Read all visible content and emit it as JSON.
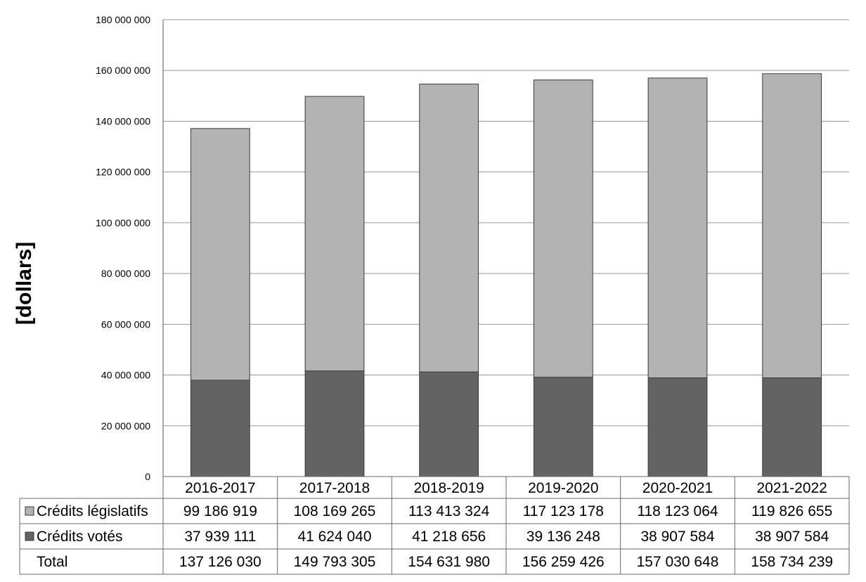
{
  "chart_data": {
    "type": "bar",
    "stacked": true,
    "ylabel": "[dollars]",
    "ylim": [
      0,
      180000000
    ],
    "yticks": [
      0,
      20000000,
      40000000,
      60000000,
      80000000,
      100000000,
      120000000,
      140000000,
      160000000,
      180000000
    ],
    "ytick_labels": [
      "0",
      "20 000 000",
      "40 000 000",
      "60 000 000",
      "80 000 000",
      "100 000 000",
      "120 000 000",
      "140 000 000",
      "160 000 000",
      "180 000 000"
    ],
    "grid": true,
    "legend": "data-table",
    "categories": [
      "2016-2017",
      "2017-2018",
      "2018-2019",
      "2019-2020",
      "2020-2021",
      "2021-2022"
    ],
    "series": [
      {
        "name": "Crédits législatifs",
        "color": "#b3b3b3",
        "values": [
          99186919,
          108169265,
          113413324,
          117123178,
          118123064,
          119826655
        ],
        "labels": [
          "99 186 919",
          "108 169 265",
          "113 413 324",
          "117 123 178",
          "118 123 064",
          "119 826 655"
        ]
      },
      {
        "name": "Crédits votés",
        "color": "#636363",
        "values": [
          37939111,
          41624040,
          41218656,
          39136248,
          38907584,
          38907584
        ],
        "labels": [
          "37 939 111",
          "41 624 040",
          "41 218 656",
          "39 136 248",
          "38 907 584",
          "38 907 584"
        ]
      }
    ],
    "total": {
      "name": "Total",
      "values": [
        137126030,
        149793305,
        154631980,
        156259426,
        157030648,
        158734239
      ],
      "labels": [
        "137 126 030",
        "149 793 305",
        "154 631 980",
        "156 259 426",
        "157 030 648",
        "158 734 239"
      ]
    }
  }
}
